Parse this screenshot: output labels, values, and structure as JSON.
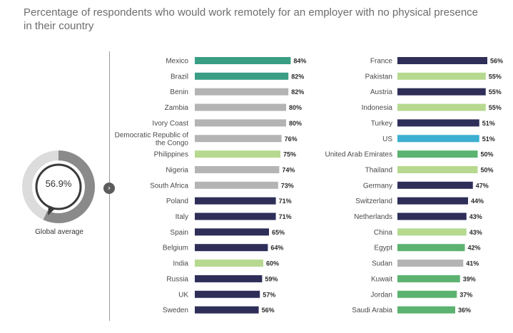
{
  "title": "Percentage of respondents who would work remotely for an employer with no physical presence in their country",
  "global": {
    "value_label": "56.9%",
    "value": 56.9,
    "caption": "Global average"
  },
  "colors": {
    "navy": "#2e2e59",
    "teal": "#3a9e85",
    "gray": "#b4b4b4",
    "lightgreen": "#b6d98f",
    "green": "#5cb270",
    "blue": "#3dafd0",
    "gauge_track": "#dcdcdc",
    "gauge_fill": "#8a8a8a"
  },
  "chart_data": [
    {
      "type": "bar",
      "orientation": "horizontal",
      "categories": [
        "Mexico",
        "Brazil",
        "Benin",
        "Zambia",
        "Ivory Coast",
        "Democratic Republic of the Congo",
        "Philippines",
        "Nigeria",
        "South Africa",
        "Poland",
        "Italy",
        "Spain",
        "Belgium",
        "India",
        "Russia",
        "UK",
        "Sweden"
      ],
      "values": [
        84,
        82,
        82,
        80,
        80,
        76,
        75,
        74,
        73,
        71,
        71,
        65,
        64,
        60,
        59,
        57,
        56
      ],
      "value_labels": [
        "84%",
        "82%",
        "82%",
        "80%",
        "80%",
        "76%",
        "75%",
        "74%",
        "73%",
        "71%",
        "71%",
        "65%",
        "64%",
        "60%",
        "59%",
        "57%",
        "56%"
      ],
      "colors": [
        "teal",
        "teal",
        "gray",
        "gray",
        "gray",
        "gray",
        "lightgreen",
        "gray",
        "gray",
        "navy",
        "navy",
        "navy",
        "navy",
        "lightgreen",
        "navy",
        "navy",
        "navy"
      ],
      "xlim": [
        0,
        100
      ]
    },
    {
      "type": "bar",
      "orientation": "horizontal",
      "categories": [
        "France",
        "Pakistan",
        "Austria",
        "Indonesia",
        "Turkey",
        "US",
        "United Arab Emirates",
        "Thailand",
        "Germany",
        "Switzerland",
        "Netherlands",
        "China",
        "Egypt",
        "Sudan",
        "Kuwait",
        "Jordan",
        "Saudi Arabia"
      ],
      "values": [
        56,
        55,
        55,
        55,
        51,
        51,
        50,
        50,
        47,
        44,
        43,
        43,
        42,
        41,
        39,
        37,
        36
      ],
      "value_labels": [
        "56%",
        "55%",
        "55%",
        "55%",
        "51%",
        "51%",
        "50%",
        "50%",
        "47%",
        "44%",
        "43%",
        "43%",
        "42%",
        "41%",
        "39%",
        "37%",
        "36%"
      ],
      "colors": [
        "navy",
        "lightgreen",
        "navy",
        "lightgreen",
        "navy",
        "blue",
        "green",
        "lightgreen",
        "navy",
        "navy",
        "navy",
        "lightgreen",
        "green",
        "gray",
        "green",
        "green",
        "green"
      ],
      "xlim": [
        0,
        100
      ]
    }
  ]
}
